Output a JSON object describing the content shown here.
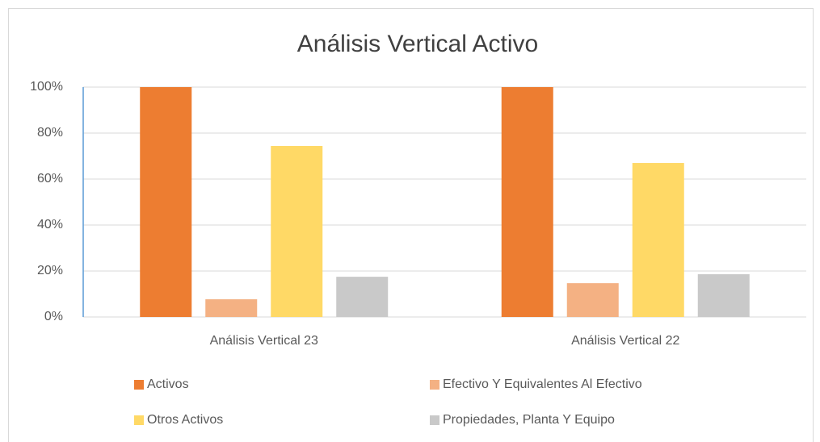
{
  "chart_data": {
    "type": "bar",
    "title": "Análisis Vertical Activo",
    "categories": [
      "Análisis Vertical 23",
      "Análisis Vertical 22"
    ],
    "series": [
      {
        "name": "Activos",
        "color": "#ed7d31",
        "values": [
          100,
          100
        ]
      },
      {
        "name": "Efectivo Y Equivalentes Al Efectivo",
        "color": "#f4b183",
        "values": [
          7.7,
          14.7
        ]
      },
      {
        "name": "Otros Activos",
        "color": "#ffd966",
        "values": [
          74.4,
          67
        ]
      },
      {
        "name": "Propiedades, Planta Y Equipo",
        "color": "#c9c9c9",
        "values": [
          17.5,
          18.6
        ]
      }
    ],
    "ylim": [
      0,
      100
    ],
    "yticks": [
      {
        "value": 0,
        "label": "0%"
      },
      {
        "value": 20,
        "label": "20%"
      },
      {
        "value": 40,
        "label": "40%"
      },
      {
        "value": 60,
        "label": "60%"
      },
      {
        "value": 80,
        "label": "80%"
      },
      {
        "value": 100,
        "label": "100%"
      }
    ],
    "grid": true
  }
}
